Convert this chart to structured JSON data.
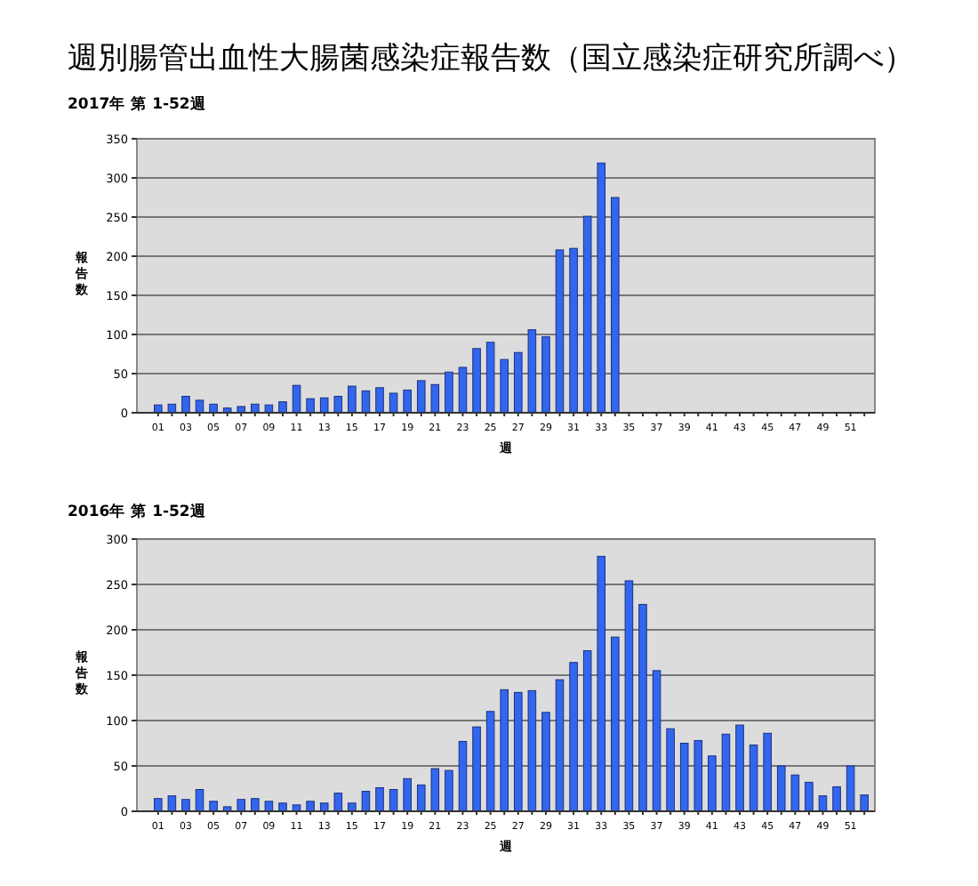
{
  "chart_data": [
    {
      "type": "bar",
      "title": "週別腸管出血性大腸菌感染症報告数（国立感染症研究所調べ）",
      "subtitle": "2017年 第 1-52週",
      "xlabel": "週",
      "ylabel": "報告数",
      "categories": [
        "01",
        null,
        "03",
        null,
        "05",
        null,
        "07",
        null,
        "09",
        null,
        "11",
        null,
        "13",
        null,
        "15",
        null,
        "17",
        null,
        "19",
        null,
        "21",
        null,
        "23",
        null,
        "25",
        null,
        "27",
        null,
        "29",
        null,
        "31",
        null,
        "33",
        null,
        "35",
        null,
        "37",
        null,
        "39",
        null,
        "41",
        null,
        "43",
        null,
        "45",
        null,
        "47",
        null,
        "49",
        null,
        "51",
        null
      ],
      "values": [
        10,
        11,
        21,
        16,
        11,
        6,
        8,
        11,
        10,
        14,
        35,
        18,
        19,
        21,
        34,
        28,
        32,
        25,
        29,
        41,
        36,
        52,
        58,
        82,
        90,
        68,
        77,
        106,
        97,
        208,
        210,
        251,
        319,
        275,
        null,
        null,
        null,
        null,
        null,
        null,
        null,
        null,
        null,
        null,
        null,
        null,
        null,
        null,
        null,
        null,
        null,
        null
      ],
      "color": "#3366ee",
      "ylim": [
        0,
        350
      ],
      "yticks": [
        0,
        50,
        100,
        150,
        200,
        250,
        300,
        350
      ],
      "grid": "y"
    },
    {
      "type": "bar",
      "subtitle": "2016年 第 1-52週",
      "xlabel": "週",
      "ylabel": "報告数",
      "categories": [
        "01",
        null,
        "03",
        null,
        "05",
        null,
        "07",
        null,
        "09",
        null,
        "11",
        null,
        "13",
        null,
        "15",
        null,
        "17",
        null,
        "19",
        null,
        "21",
        null,
        "23",
        null,
        "25",
        null,
        "27",
        null,
        "29",
        null,
        "31",
        null,
        "33",
        null,
        "35",
        null,
        "37",
        null,
        "39",
        null,
        "41",
        null,
        "43",
        null,
        "45",
        null,
        "47",
        null,
        "49",
        null,
        "51",
        null
      ],
      "values": [
        14,
        17,
        13,
        24,
        11,
        5,
        13,
        14,
        11,
        9,
        7,
        11,
        9,
        20,
        9,
        22,
        26,
        24,
        36,
        29,
        47,
        45,
        77,
        93,
        110,
        134,
        131,
        133,
        109,
        145,
        164,
        177,
        281,
        192,
        254,
        228,
        155,
        91,
        75,
        78,
        61,
        85,
        95,
        73,
        86,
        50,
        40,
        32,
        17,
        27,
        50,
        18
      ],
      "color": "#3366ee",
      "ylim": [
        0,
        300
      ],
      "yticks": [
        0,
        50,
        100,
        150,
        200,
        250,
        300
      ],
      "grid": "y"
    }
  ]
}
